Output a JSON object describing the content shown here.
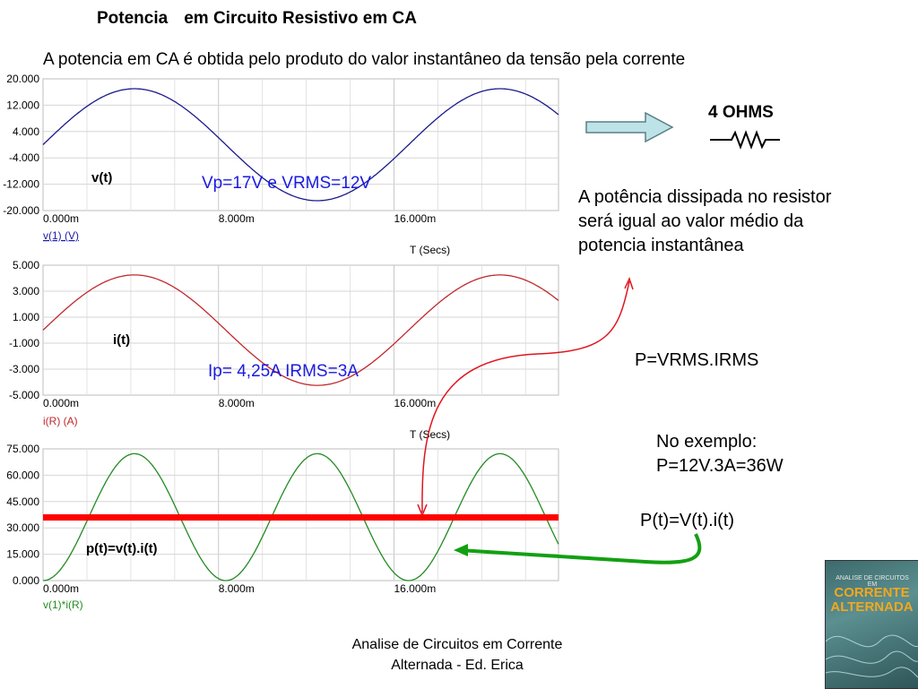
{
  "slide": {
    "title_parts": [
      "Potencia",
      "em Circuito  Resistivo  em CA"
    ],
    "subtitle": "A potencia em CA é obtida pelo produto do valor instantâneo da tensão pela corrente",
    "resistor_label": "4 OHMS",
    "side_text_lines": [
      "A potência dissipada no resistor",
      "será igual ao valor médio da",
      "potencia instantânea"
    ],
    "formula_rms": "P=VRMS.IRMS",
    "example_lines": [
      "No exemplo:",
      "P=12V.3A=36W"
    ],
    "formula_instant": "P(t)=V(t).i(t)",
    "footer_lines": [
      "Analise de Circuitos em Corrente",
      "Alternada - Ed. Erica"
    ],
    "book_cover": {
      "small": "ANALISE DE CIRCUITOS EM",
      "big_lines": [
        "CORRENTE",
        "ALTERNADA"
      ]
    }
  },
  "chart_data": [
    {
      "type": "line",
      "ylim": [
        -20,
        20
      ],
      "y_ticks": [
        "20.000",
        "12.000",
        "4.000",
        "-4.000",
        "-12.000",
        "-20.000"
      ],
      "x_ticks": [
        "0.000m",
        "8.000m",
        "16.000m"
      ],
      "xlabel": "T (Secs)",
      "legend": "v(1) (V)",
      "label": "v(t)",
      "annotation": "Vp=17V  e VRMS=12V",
      "color": "#1a1a8c",
      "amplitude": 17,
      "period_ms": 16.667
    },
    {
      "type": "line",
      "ylim": [
        -5,
        5
      ],
      "y_ticks": [
        "5.000",
        "3.000",
        "1.000",
        "-1.000",
        "-3.000",
        "-5.000"
      ],
      "x_ticks": [
        "0.000m",
        "8.000m",
        "16.000m"
      ],
      "xlabel": "T (Secs)",
      "legend": "i(R) (A)",
      "label": "i(t)",
      "annotation": "Ip= 4,25A  IRMS=3A",
      "color": "#c0282d",
      "amplitude": 4.25,
      "period_ms": 16.667
    },
    {
      "type": "line",
      "ylim": [
        0,
        75
      ],
      "y_ticks": [
        "75.000",
        "60.000",
        "45.000",
        "30.000",
        "15.000",
        "0.000"
      ],
      "x_ticks": [
        "0.000m",
        "8.000m",
        "16.000m"
      ],
      "legend": "v(1)*i(R)",
      "label": "p(t)=v(t).i(t)",
      "color": "#228b22",
      "peak": 72.25,
      "average": 36,
      "average_color": "#ff0000"
    }
  ],
  "x_range_ms": [
    0,
    23.5
  ],
  "colors": {
    "arrow_red": "#e0141e",
    "arrow_green": "#12a012",
    "arrow_fill": "#bde3e8",
    "arrow_stroke": "#5a7f84"
  }
}
